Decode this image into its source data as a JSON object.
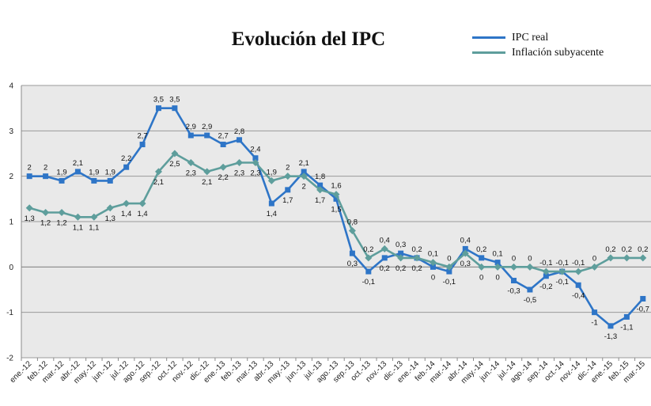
{
  "chart_data": {
    "type": "line",
    "title": "Evolución del IPC",
    "xlabel": "",
    "ylabel": "",
    "ylim": [
      -2,
      4
    ],
    "yticks": [
      "-2",
      "-1",
      "0",
      "1",
      "2",
      "3",
      "4"
    ],
    "grid": true,
    "legend_position": "top-right",
    "categories": [
      "ene.-12",
      "feb.-12",
      "mar.-12",
      "abr.-12",
      "may.-12",
      "jun.-12",
      "jul.-12",
      "ago.-12",
      "sep.-12",
      "oct.-12",
      "nov.-12",
      "dic.-12",
      "ene.-13",
      "feb.-13",
      "mar.-13",
      "abr.-13",
      "may.-13",
      "jun.-13",
      "jul.-13",
      "ago.-13",
      "sep.-13",
      "oct.-13",
      "nov.-13",
      "dic.-13",
      "ene.-14",
      "feb.-14",
      "mar.-14",
      "abr.-14",
      "may.-14",
      "jun.-14",
      "jul.-14",
      "ago.-14",
      "sep.-14",
      "oct.-14",
      "nov.-14",
      "dic.-14",
      "ene.-15",
      "feb.-15",
      "mar.-15"
    ],
    "series": [
      {
        "name": "IPC real",
        "color": "#2E75C7",
        "marker": "square",
        "values": [
          2,
          2,
          1.9,
          2.1,
          1.9,
          1.9,
          2.2,
          2.7,
          3.5,
          3.5,
          2.9,
          2.9,
          2.7,
          2.8,
          2.4,
          1.4,
          1.7,
          2.1,
          1.8,
          1.5,
          0.3,
          -0.1,
          0.2,
          0.3,
          0.2,
          0,
          -0.1,
          0.4,
          0.2,
          0.1,
          -0.3,
          -0.5,
          -0.2,
          -0.1,
          -0.4,
          -1,
          -1.3,
          -1.1,
          -0.7
        ],
        "labels": [
          "2",
          "2",
          "1,9",
          "2,1",
          "1,9",
          "1,9",
          "2,2",
          "2,7",
          "3,5",
          "3,5",
          "2,9",
          "2,9",
          "2,7",
          "2,8",
          "2,4",
          "1,4",
          "1,7",
          "2,1",
          "1,8",
          "1,5",
          "0,3",
          "-0,1",
          "0,2",
          "0,3",
          "0,2",
          "0",
          "-0,1",
          "0,4",
          "0,2",
          "0,1",
          "-0,3",
          "-0,5",
          "-0,2",
          "-0,1",
          "-0,4",
          "-1",
          "-1,3",
          "-1,1",
          "-0,7"
        ]
      },
      {
        "name": "Inflación subyacente",
        "color": "#5E9E9C",
        "marker": "diamond",
        "values": [
          1.3,
          1.2,
          1.2,
          1.1,
          1.1,
          1.3,
          1.4,
          1.4,
          2.1,
          2.5,
          2.3,
          2.1,
          2.2,
          2.3,
          2.3,
          1.9,
          2,
          2,
          1.7,
          1.6,
          0.8,
          0.2,
          0.4,
          0.2,
          0.2,
          0.1,
          0,
          0.3,
          0,
          0,
          0,
          0,
          -0.1,
          -0.1,
          -0.1,
          0,
          0.2,
          0.2,
          0.2
        ],
        "labels": [
          "1,3",
          "1,2",
          "1,2",
          "1,1",
          "1,1",
          "1,3",
          "1,4",
          "1,4",
          "2,1",
          "2,5",
          "2,3",
          "2,1",
          "2,2",
          "2,3",
          "2,3",
          "1,9",
          "2",
          "2",
          "1,7",
          "1,6",
          "0,8",
          "0,2",
          "0,4",
          "0,2",
          "0,2",
          "0,1",
          "0",
          "0,3",
          "0",
          "0",
          "0",
          "0",
          "-0,1",
          "-0,1",
          "-0,1",
          "0",
          "0,2",
          "0,2",
          "0,2"
        ]
      }
    ]
  }
}
